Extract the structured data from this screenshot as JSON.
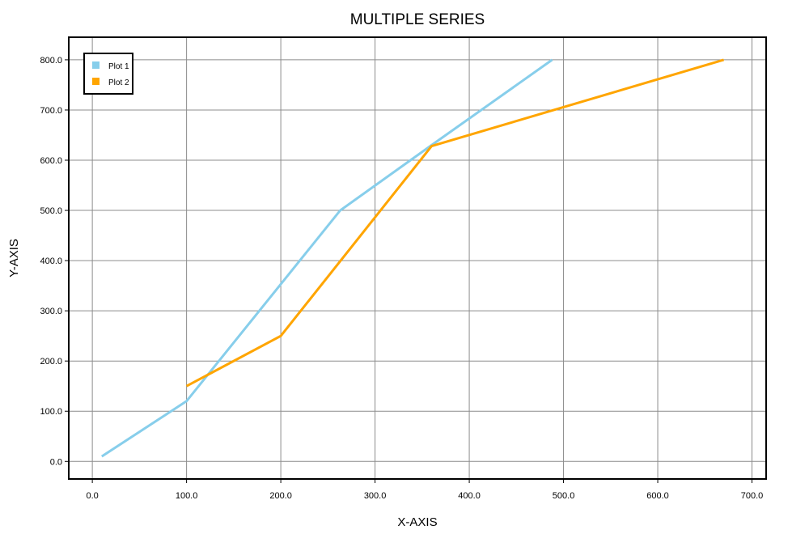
{
  "chart_data": {
    "type": "line",
    "title": "MULTIPLE SERIES",
    "xlabel": "X-AXIS",
    "ylabel": "Y-AXIS",
    "xlim": [
      -25,
      715
    ],
    "ylim": [
      -35,
      845
    ],
    "x_ticks": [
      0,
      100,
      200,
      300,
      400,
      500,
      600,
      700
    ],
    "y_ticks": [
      0,
      100,
      200,
      300,
      400,
      500,
      600,
      700,
      800
    ],
    "x_tick_labels": [
      "0.0",
      "100.0",
      "200.0",
      "300.0",
      "400.0",
      "500.0",
      "600.0",
      "700.0"
    ],
    "y_tick_labels": [
      "0.0",
      "100.0",
      "200.0",
      "300.0",
      "400.0",
      "500.0",
      "600.0",
      "700.0",
      "800.0"
    ],
    "grid": true,
    "legend_position": "top-left",
    "series": [
      {
        "name": "Plot 1",
        "color": "#87ceeb",
        "points": [
          [
            10,
            10
          ],
          [
            100,
            120
          ],
          [
            263,
            500
          ],
          [
            360,
            630
          ],
          [
            488,
            800
          ]
        ]
      },
      {
        "name": "Plot 2",
        "color": "#ffa500",
        "points": [
          [
            100,
            150
          ],
          [
            200,
            250
          ],
          [
            360,
            628
          ],
          [
            670,
            800
          ]
        ]
      }
    ]
  }
}
